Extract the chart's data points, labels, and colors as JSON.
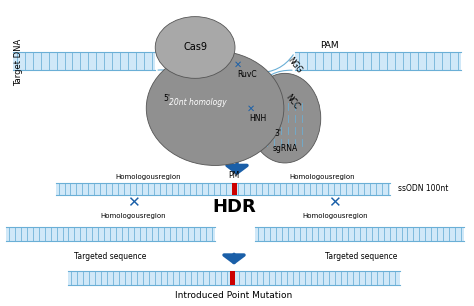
{
  "background_color": "#ffffff",
  "dna_fill": "#d0e8f8",
  "dna_edge": "#6aafd6",
  "dna_rung": "#6aafd6",
  "cas9_main_color": "#909090",
  "cas9_head_color": "#a8a8a8",
  "cas9_right_color": "#909090",
  "arrow_color": "#1a5fa8",
  "pm_color": "#cc0000",
  "text_color": "#000000",
  "labels": {
    "target_dna": "Target DNA",
    "cas9": "Cas9",
    "pam": "PAM",
    "ngg": "NGG",
    "ruvc": "RuvC",
    "hnh": "HNH",
    "ncc": "NCC",
    "homology_20nt": "20nt homology",
    "sgRNA": "sgRNA",
    "prime3": "3'",
    "prime5": "5'",
    "hdr": "HDR",
    "ssodn": "ssODN 100nt",
    "pm": "PM",
    "homologous_region": "Homologousregion",
    "targeted_sequence": "Targeted sequence",
    "introduced": "Introduced Point Mutation"
  }
}
